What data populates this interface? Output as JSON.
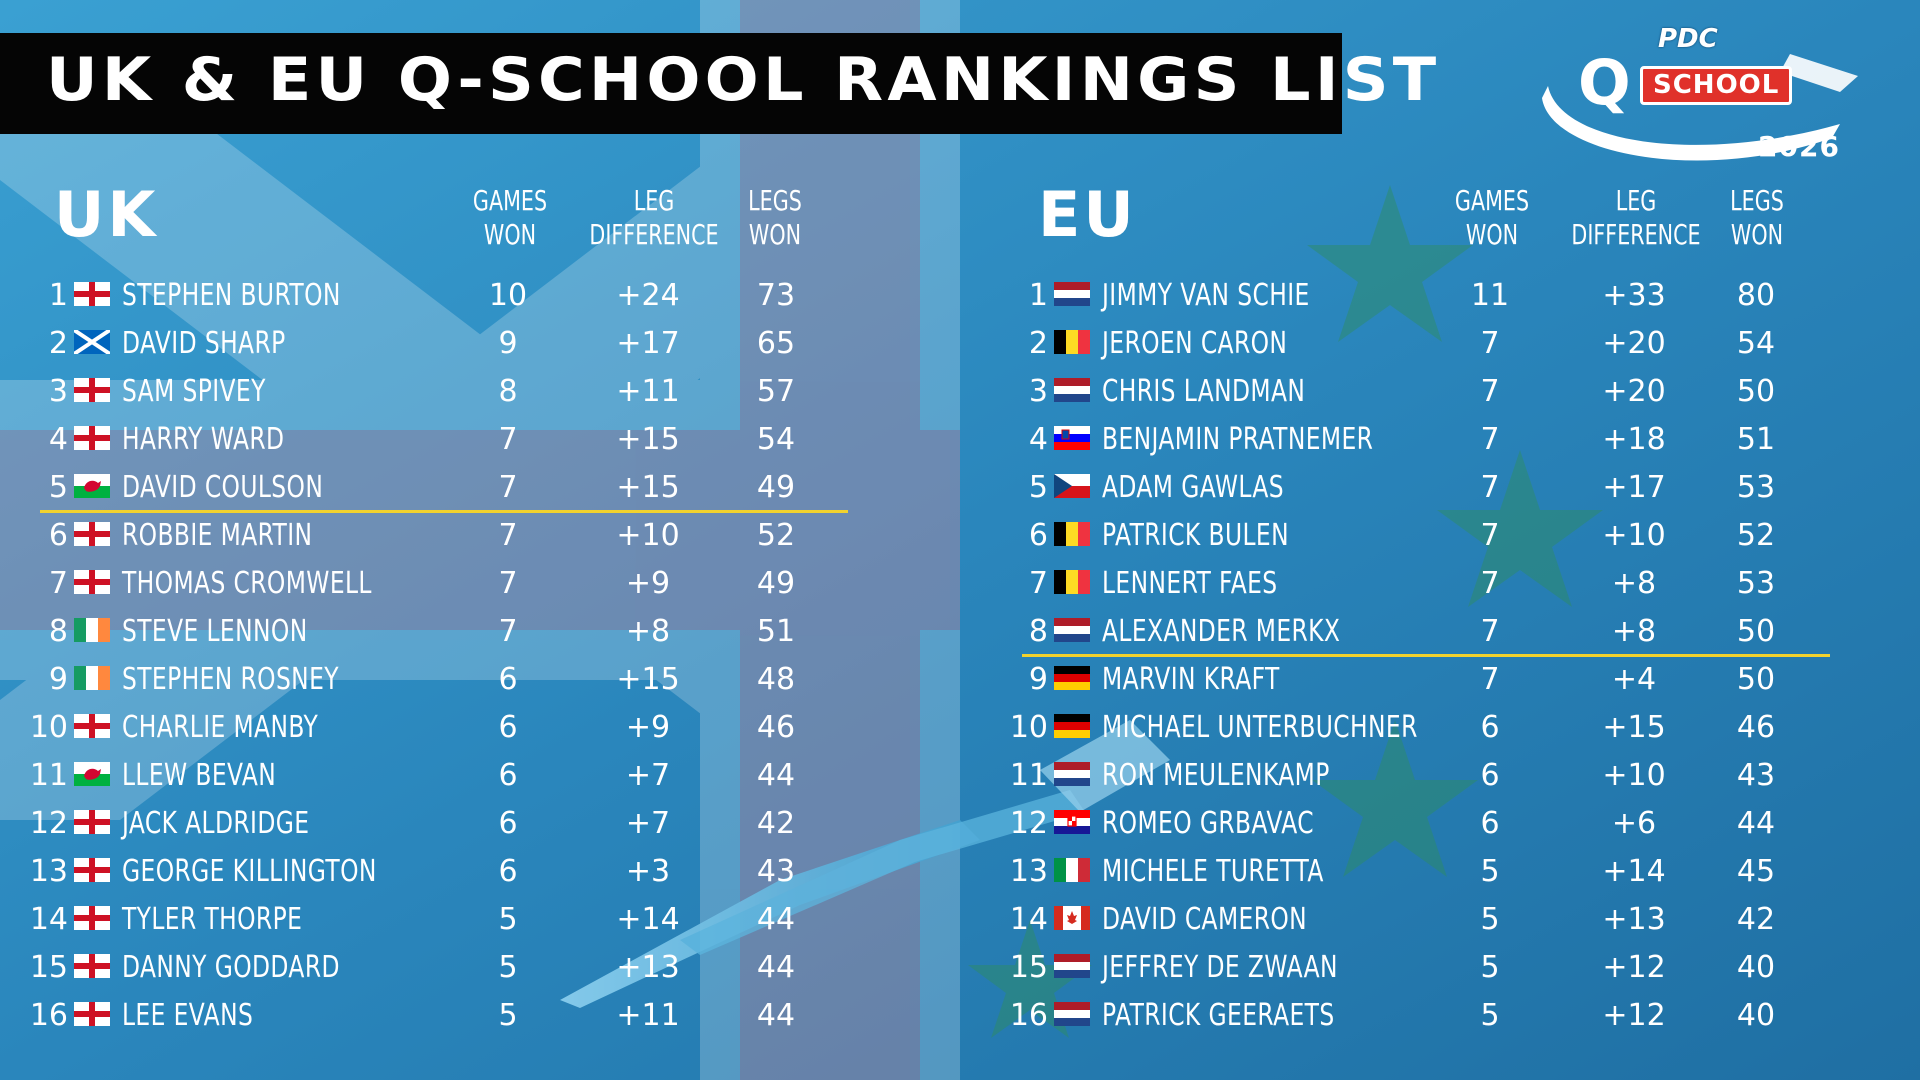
{
  "title": "UK & EU Q-SCHOOL RANKINGS LIST",
  "logo": {
    "brand": "PDC",
    "q": "Q",
    "word": "SCHOOL",
    "year": "2026"
  },
  "columns": {
    "games_won": [
      "GAMES",
      "WON"
    ],
    "leg_difference": [
      "LEG",
      "DIFFERENCE"
    ],
    "legs_won": [
      "LEGS",
      "WON"
    ]
  },
  "colors": {
    "accent_cutoff": "#f2d22e",
    "title_bg": "#050505",
    "background": "#2a86bc",
    "logo_red": "#e0312a"
  },
  "uk": {
    "label": "UK",
    "cutoff_after_rank": 5,
    "rows": [
      {
        "rank": "1",
        "flag": "england",
        "name": "STEPHEN BURTON",
        "games_won": "10",
        "leg_diff": "+24",
        "legs_won": "73"
      },
      {
        "rank": "2",
        "flag": "scotland",
        "name": "DAVID SHARP",
        "games_won": "9",
        "leg_diff": "+17",
        "legs_won": "65"
      },
      {
        "rank": "3",
        "flag": "england",
        "name": "SAM SPIVEY",
        "games_won": "8",
        "leg_diff": "+11",
        "legs_won": "57"
      },
      {
        "rank": "4",
        "flag": "england",
        "name": "HARRY WARD",
        "games_won": "7",
        "leg_diff": "+15",
        "legs_won": "54"
      },
      {
        "rank": "5",
        "flag": "wales",
        "name": "DAVID COULSON",
        "games_won": "7",
        "leg_diff": "+15",
        "legs_won": "49"
      },
      {
        "rank": "6",
        "flag": "england",
        "name": "ROBBIE MARTIN",
        "games_won": "7",
        "leg_diff": "+10",
        "legs_won": "52"
      },
      {
        "rank": "7",
        "flag": "england",
        "name": "THOMAS CROMWELL",
        "games_won": "7",
        "leg_diff": "+9",
        "legs_won": "49"
      },
      {
        "rank": "8",
        "flag": "ireland",
        "name": "STEVE LENNON",
        "games_won": "7",
        "leg_diff": "+8",
        "legs_won": "51"
      },
      {
        "rank": "9",
        "flag": "ireland",
        "name": "STEPHEN ROSNEY",
        "games_won": "6",
        "leg_diff": "+15",
        "legs_won": "48"
      },
      {
        "rank": "10",
        "flag": "england",
        "name": "CHARLIE MANBY",
        "games_won": "6",
        "leg_diff": "+9",
        "legs_won": "46"
      },
      {
        "rank": "11",
        "flag": "wales",
        "name": "LLEW BEVAN",
        "games_won": "6",
        "leg_diff": "+7",
        "legs_won": "44"
      },
      {
        "rank": "12",
        "flag": "england",
        "name": "JACK ALDRIDGE",
        "games_won": "6",
        "leg_diff": "+7",
        "legs_won": "42"
      },
      {
        "rank": "13",
        "flag": "england",
        "name": "GEORGE KILLINGTON",
        "games_won": "6",
        "leg_diff": "+3",
        "legs_won": "43"
      },
      {
        "rank": "14",
        "flag": "england",
        "name": "TYLER THORPE",
        "games_won": "5",
        "leg_diff": "+14",
        "legs_won": "44"
      },
      {
        "rank": "15",
        "flag": "england",
        "name": "DANNY GODDARD",
        "games_won": "5",
        "leg_diff": "+13",
        "legs_won": "44"
      },
      {
        "rank": "16",
        "flag": "england",
        "name": "LEE EVANS",
        "games_won": "5",
        "leg_diff": "+11",
        "legs_won": "44"
      }
    ]
  },
  "eu": {
    "label": "EU",
    "cutoff_after_rank": 8,
    "rows": [
      {
        "rank": "1",
        "flag": "netherlands",
        "name": "JIMMY VAN SCHIE",
        "games_won": "11",
        "leg_diff": "+33",
        "legs_won": "80"
      },
      {
        "rank": "2",
        "flag": "belgium",
        "name": "JEROEN CARON",
        "games_won": "7",
        "leg_diff": "+20",
        "legs_won": "54"
      },
      {
        "rank": "3",
        "flag": "netherlands",
        "name": "CHRIS LANDMAN",
        "games_won": "7",
        "leg_diff": "+20",
        "legs_won": "50"
      },
      {
        "rank": "4",
        "flag": "slovenia",
        "name": "BENJAMIN PRATNEMER",
        "games_won": "7",
        "leg_diff": "+18",
        "legs_won": "51"
      },
      {
        "rank": "5",
        "flag": "czechia",
        "name": "ADAM GAWLAS",
        "games_won": "7",
        "leg_diff": "+17",
        "legs_won": "53"
      },
      {
        "rank": "6",
        "flag": "belgium",
        "name": "PATRICK BULEN",
        "games_won": "7",
        "leg_diff": "+10",
        "legs_won": "52"
      },
      {
        "rank": "7",
        "flag": "belgium",
        "name": "LENNERT FAES",
        "games_won": "7",
        "leg_diff": "+8",
        "legs_won": "53"
      },
      {
        "rank": "8",
        "flag": "netherlands",
        "name": "ALEXANDER MERKX",
        "games_won": "7",
        "leg_diff": "+8",
        "legs_won": "50"
      },
      {
        "rank": "9",
        "flag": "germany",
        "name": "MARVIN KRAFT",
        "games_won": "7",
        "leg_diff": "+4",
        "legs_won": "50"
      },
      {
        "rank": "10",
        "flag": "germany",
        "name": "MICHAEL UNTERBUCHNER",
        "games_won": "6",
        "leg_diff": "+15",
        "legs_won": "46"
      },
      {
        "rank": "11",
        "flag": "netherlands",
        "name": "RON MEULENKAMP",
        "games_won": "6",
        "leg_diff": "+10",
        "legs_won": "43"
      },
      {
        "rank": "12",
        "flag": "croatia",
        "name": "ROMEO GRBAVAC",
        "games_won": "6",
        "leg_diff": "+6",
        "legs_won": "44"
      },
      {
        "rank": "13",
        "flag": "italy",
        "name": "MICHELE TURETTA",
        "games_won": "5",
        "leg_diff": "+14",
        "legs_won": "45"
      },
      {
        "rank": "14",
        "flag": "canada",
        "name": "DAVID CAMERON",
        "games_won": "5",
        "leg_diff": "+13",
        "legs_won": "42"
      },
      {
        "rank": "15",
        "flag": "netherlands",
        "name": "JEFFREY DE ZWAAN",
        "games_won": "5",
        "leg_diff": "+12",
        "legs_won": "40"
      },
      {
        "rank": "16",
        "flag": "netherlands",
        "name": "PATRICK GEERAETS",
        "games_won": "5",
        "leg_diff": "+12",
        "legs_won": "40"
      }
    ]
  }
}
